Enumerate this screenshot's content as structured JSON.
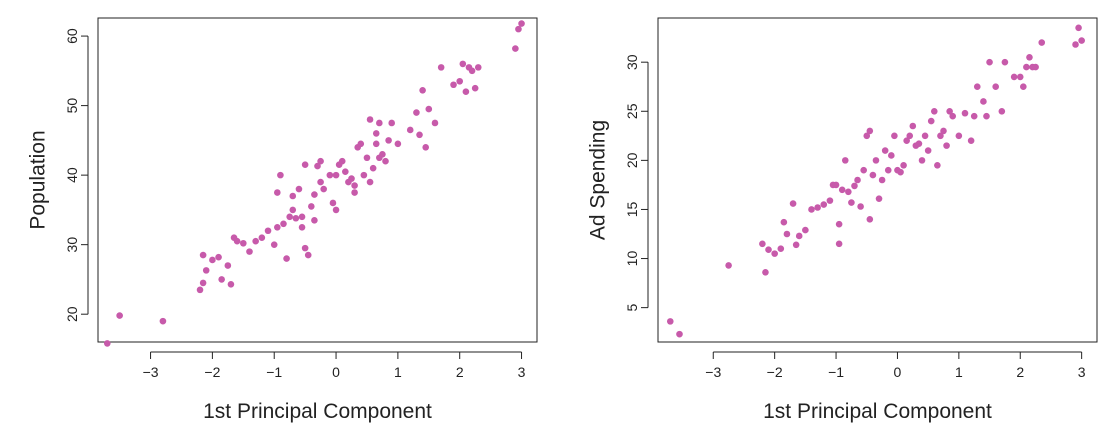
{
  "chart_data": [
    {
      "type": "scatter",
      "xlabel": "1st Principal Component",
      "ylabel": "Population",
      "xlim": [
        -3.85,
        3.25
      ],
      "ylim": [
        16.0,
        62.6
      ],
      "xticks": [
        -3,
        -2,
        -1,
        0,
        1,
        2,
        3
      ],
      "yticks": [
        20,
        30,
        40,
        50,
        60
      ],
      "point_color": "#c75aaa",
      "grid": false,
      "legend": "none",
      "points": [
        [
          -3.7,
          15.8
        ],
        [
          -3.5,
          19.8
        ],
        [
          -2.8,
          19.0
        ],
        [
          -2.2,
          23.5
        ],
        [
          -2.15,
          24.5
        ],
        [
          -2.15,
          28.5
        ],
        [
          -2.1,
          26.3
        ],
        [
          -2.0,
          27.8
        ],
        [
          -1.9,
          28.2
        ],
        [
          -1.85,
          25.0
        ],
        [
          -1.75,
          27.0
        ],
        [
          -1.7,
          24.3
        ],
        [
          -1.65,
          31.0
        ],
        [
          -1.6,
          30.5
        ],
        [
          -1.5,
          30.2
        ],
        [
          -1.4,
          29.0
        ],
        [
          -1.3,
          30.5
        ],
        [
          -1.2,
          31.0
        ],
        [
          -1.1,
          32.0
        ],
        [
          -1.0,
          30.0
        ],
        [
          -0.95,
          32.5
        ],
        [
          -0.95,
          37.5
        ],
        [
          -0.9,
          40.0
        ],
        [
          -0.85,
          33.0
        ],
        [
          -0.8,
          28.0
        ],
        [
          -0.75,
          34.0
        ],
        [
          -0.7,
          35.0
        ],
        [
          -0.7,
          37.0
        ],
        [
          -0.65,
          33.8
        ],
        [
          -0.6,
          38.0
        ],
        [
          -0.55,
          32.5
        ],
        [
          -0.55,
          34.0
        ],
        [
          -0.5,
          41.5
        ],
        [
          -0.5,
          29.5
        ],
        [
          -0.45,
          28.5
        ],
        [
          -0.4,
          35.5
        ],
        [
          -0.35,
          33.5
        ],
        [
          -0.35,
          37.2
        ],
        [
          -0.3,
          41.3
        ],
        [
          -0.25,
          42.0
        ],
        [
          -0.25,
          39.0
        ],
        [
          -0.2,
          38.0
        ],
        [
          -0.1,
          40.0
        ],
        [
          -0.05,
          36.0
        ],
        [
          0.0,
          35.0
        ],
        [
          0.0,
          40.0
        ],
        [
          0.05,
          41.5
        ],
        [
          0.1,
          42.0
        ],
        [
          0.15,
          40.5
        ],
        [
          0.2,
          39.0
        ],
        [
          0.25,
          39.5
        ],
        [
          0.3,
          37.5
        ],
        [
          0.3,
          38.5
        ],
        [
          0.35,
          44.0
        ],
        [
          0.4,
          44.5
        ],
        [
          0.45,
          40.0
        ],
        [
          0.5,
          42.5
        ],
        [
          0.55,
          48.0
        ],
        [
          0.55,
          39.0
        ],
        [
          0.6,
          41.0
        ],
        [
          0.65,
          44.5
        ],
        [
          0.65,
          46.0
        ],
        [
          0.7,
          47.5
        ],
        [
          0.7,
          42.5
        ],
        [
          0.75,
          43.0
        ],
        [
          0.8,
          42.0
        ],
        [
          0.85,
          45.0
        ],
        [
          0.9,
          47.5
        ],
        [
          1.0,
          44.5
        ],
        [
          1.2,
          46.5
        ],
        [
          1.3,
          49.0
        ],
        [
          1.35,
          45.8
        ],
        [
          1.4,
          52.2
        ],
        [
          1.45,
          44.0
        ],
        [
          1.5,
          49.5
        ],
        [
          1.6,
          47.5
        ],
        [
          1.7,
          55.5
        ],
        [
          1.9,
          53.0
        ],
        [
          2.0,
          53.5
        ],
        [
          2.05,
          56.0
        ],
        [
          2.1,
          52.0
        ],
        [
          2.15,
          55.5
        ],
        [
          2.2,
          55.0
        ],
        [
          2.25,
          52.5
        ],
        [
          2.3,
          55.5
        ],
        [
          2.9,
          58.2
        ],
        [
          2.95,
          61.0
        ],
        [
          3.0,
          61.8
        ]
      ]
    },
    {
      "type": "scatter",
      "xlabel": "1st Principal Component",
      "ylabel": "Ad Spending",
      "xlim": [
        -3.9,
        3.25
      ],
      "ylim": [
        1.5,
        34.5
      ],
      "xticks": [
        -3,
        -2,
        -1,
        0,
        1,
        2,
        3
      ],
      "yticks": [
        5,
        10,
        15,
        20,
        25,
        30
      ],
      "point_color": "#c75aaa",
      "grid": false,
      "legend": "none",
      "points": [
        [
          -3.7,
          3.6
        ],
        [
          -3.55,
          2.3
        ],
        [
          -2.75,
          9.3
        ],
        [
          -2.2,
          11.5
        ],
        [
          -2.15,
          8.6
        ],
        [
          -2.1,
          10.9
        ],
        [
          -2.0,
          10.5
        ],
        [
          -1.9,
          11.0
        ],
        [
          -1.85,
          13.7
        ],
        [
          -1.8,
          12.5
        ],
        [
          -1.7,
          15.6
        ],
        [
          -1.65,
          11.4
        ],
        [
          -1.6,
          12.3
        ],
        [
          -1.5,
          12.9
        ],
        [
          -1.4,
          15.0
        ],
        [
          -1.3,
          15.2
        ],
        [
          -1.2,
          15.5
        ],
        [
          -1.1,
          15.9
        ],
        [
          -1.05,
          17.5
        ],
        [
          -1.0,
          17.5
        ],
        [
          -0.95,
          11.5
        ],
        [
          -0.95,
          13.5
        ],
        [
          -0.9,
          17.0
        ],
        [
          -0.85,
          20.0
        ],
        [
          -0.8,
          16.8
        ],
        [
          -0.75,
          15.7
        ],
        [
          -0.7,
          17.4
        ],
        [
          -0.65,
          18.0
        ],
        [
          -0.6,
          15.3
        ],
        [
          -0.55,
          19.0
        ],
        [
          -0.5,
          22.5
        ],
        [
          -0.45,
          23.0
        ],
        [
          -0.45,
          14.0
        ],
        [
          -0.4,
          18.5
        ],
        [
          -0.35,
          20.0
        ],
        [
          -0.3,
          16.1
        ],
        [
          -0.25,
          18.0
        ],
        [
          -0.2,
          21.0
        ],
        [
          -0.15,
          19.0
        ],
        [
          -0.1,
          20.5
        ],
        [
          -0.05,
          22.5
        ],
        [
          0.0,
          19.0
        ],
        [
          0.05,
          18.8
        ],
        [
          0.1,
          19.5
        ],
        [
          0.15,
          22.0
        ],
        [
          0.2,
          22.5
        ],
        [
          0.25,
          23.5
        ],
        [
          0.3,
          21.5
        ],
        [
          0.35,
          21.7
        ],
        [
          0.4,
          20.0
        ],
        [
          0.45,
          22.5
        ],
        [
          0.5,
          21.0
        ],
        [
          0.55,
          24.0
        ],
        [
          0.6,
          25.0
        ],
        [
          0.65,
          19.5
        ],
        [
          0.7,
          22.5
        ],
        [
          0.75,
          23.0
        ],
        [
          0.8,
          21.5
        ],
        [
          0.85,
          25.0
        ],
        [
          0.9,
          24.5
        ],
        [
          1.0,
          22.5
        ],
        [
          1.1,
          24.8
        ],
        [
          1.2,
          22.0
        ],
        [
          1.25,
          24.5
        ],
        [
          1.3,
          27.5
        ],
        [
          1.4,
          26.0
        ],
        [
          1.45,
          24.5
        ],
        [
          1.5,
          30.0
        ],
        [
          1.6,
          27.5
        ],
        [
          1.7,
          25.0
        ],
        [
          1.75,
          30.0
        ],
        [
          1.9,
          28.5
        ],
        [
          2.0,
          28.5
        ],
        [
          2.05,
          27.5
        ],
        [
          2.1,
          29.5
        ],
        [
          2.15,
          30.5
        ],
        [
          2.2,
          29.5
        ],
        [
          2.25,
          29.5
        ],
        [
          2.35,
          32.0
        ],
        [
          2.9,
          31.8
        ],
        [
          2.95,
          33.5
        ],
        [
          3.0,
          32.2
        ]
      ]
    }
  ]
}
